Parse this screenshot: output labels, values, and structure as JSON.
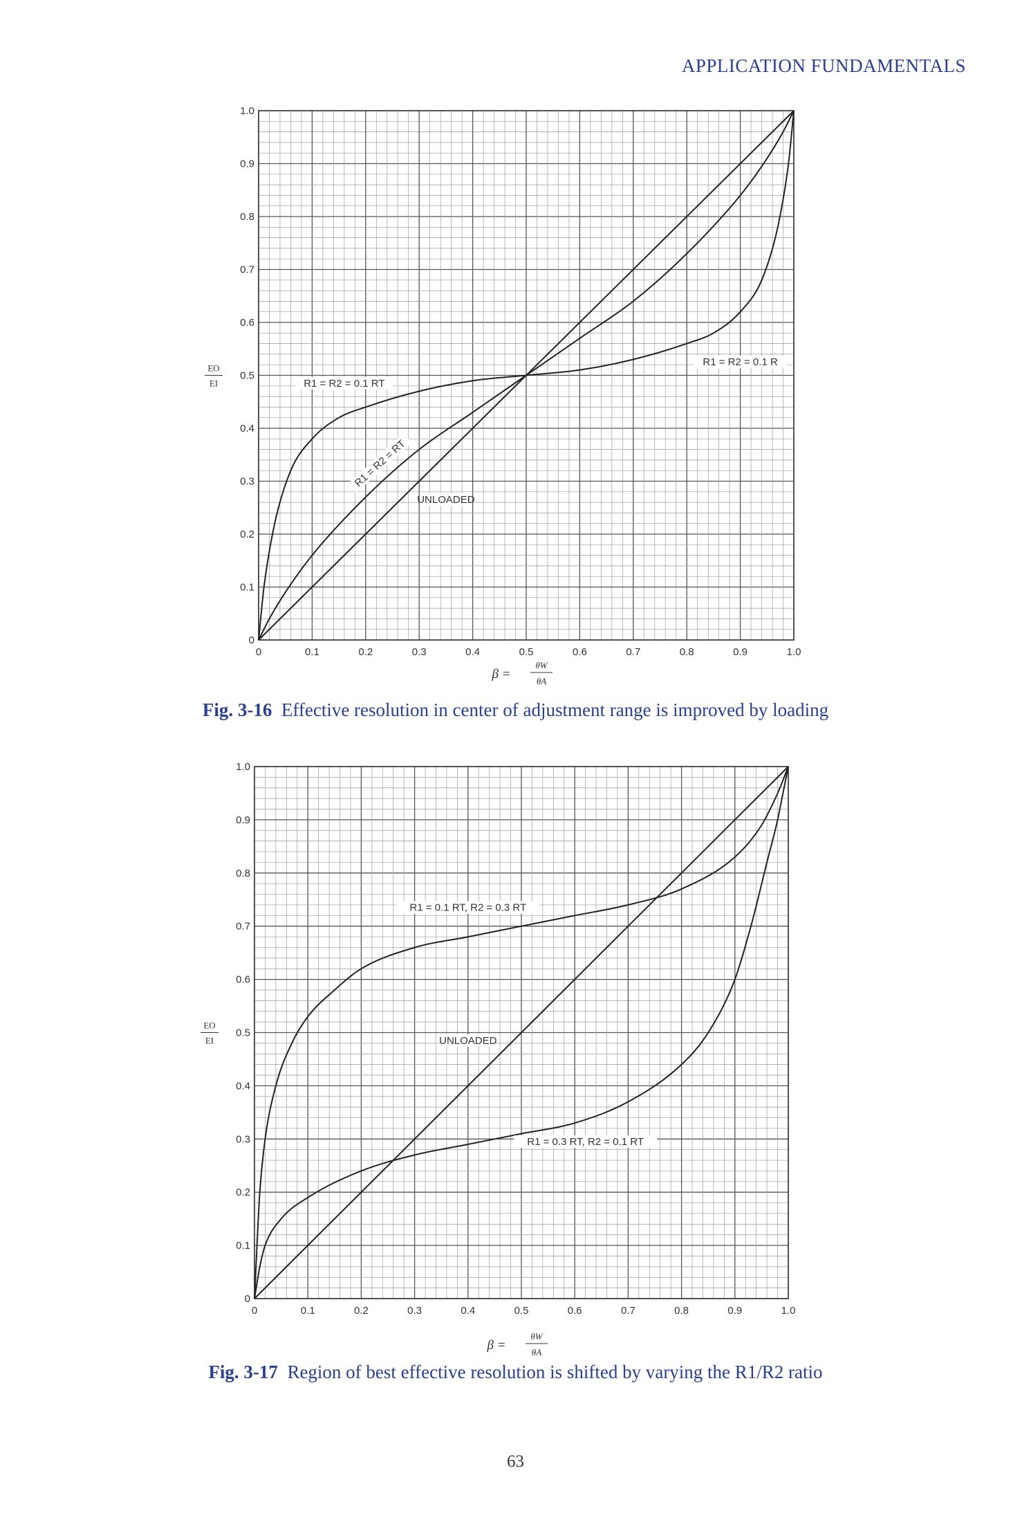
{
  "header": "APPLICATION FUNDAMENTALS",
  "page_number": "63",
  "chart_data": [
    {
      "type": "line",
      "figure_label": "Fig. 3-16",
      "caption": "Effective resolution in center of adjustment range is improved by loading",
      "xlabel": "β = θW / θA",
      "ylabel": "EO / EI",
      "xlim": [
        0,
        1.0
      ],
      "ylim": [
        0,
        1.0
      ],
      "grid": true,
      "x_ticks": [
        "0",
        "0.1",
        "0.2",
        "0.3",
        "0.4",
        "0.5",
        "0.6",
        "0.7",
        "0.8",
        "0.9",
        "1.0"
      ],
      "y_ticks": [
        "0",
        "0.1",
        "0.2",
        "0.3",
        "0.4",
        "0.5",
        "0.6",
        "0.7",
        "0.8",
        "0.9",
        "1.0"
      ],
      "series": [
        {
          "name": "UNLOADED",
          "x": [
            0,
            0.25,
            0.5,
            0.75,
            1.0
          ],
          "y": [
            0,
            0.25,
            0.5,
            0.75,
            1.0
          ]
        },
        {
          "name": "R1 = R2 = RT",
          "x": [
            0,
            0.02,
            0.05,
            0.1,
            0.2,
            0.3,
            0.4,
            0.5,
            0.6,
            0.7,
            0.8,
            0.9,
            0.95,
            0.98,
            1.0
          ],
          "y": [
            0,
            0.04,
            0.09,
            0.16,
            0.27,
            0.36,
            0.43,
            0.5,
            0.57,
            0.64,
            0.73,
            0.84,
            0.91,
            0.96,
            1.0
          ]
        },
        {
          "name": "R1 = R2 = 0.1 RT",
          "x": [
            0,
            0.01,
            0.03,
            0.06,
            0.1,
            0.15,
            0.2,
            0.3,
            0.4,
            0.5,
            0.6,
            0.7,
            0.8,
            0.85,
            0.9,
            0.94,
            0.97,
            0.99,
            1.0
          ],
          "y": [
            0,
            0.1,
            0.22,
            0.32,
            0.38,
            0.42,
            0.44,
            0.47,
            0.49,
            0.5,
            0.51,
            0.53,
            0.56,
            0.58,
            0.62,
            0.68,
            0.78,
            0.9,
            1.0
          ]
        }
      ],
      "annotations": [
        "R1 = R2 = 0.1 RT",
        "R1 = R2 = RT",
        "UNLOADED",
        "R1 = R2 = 0.1 R"
      ]
    },
    {
      "type": "line",
      "figure_label": "Fig. 3-17",
      "caption": "Region of best effective resolution is shifted by varying the R1/R2 ratio",
      "xlabel": "β = θW / θA",
      "ylabel": "EO / EI",
      "xlim": [
        0,
        1.0
      ],
      "ylim": [
        0,
        1.0
      ],
      "grid": true,
      "x_ticks": [
        "0",
        "0.1",
        "0.2",
        "0.3",
        "0.4",
        "0.5",
        "0.6",
        "0.7",
        "0.8",
        "0.9",
        "1.0"
      ],
      "y_ticks": [
        "0",
        "0.1",
        "0.2",
        "0.3",
        "0.4",
        "0.5",
        "0.6",
        "0.7",
        "0.8",
        "0.9",
        "1.0"
      ],
      "series": [
        {
          "name": "UNLOADED",
          "x": [
            0,
            0.25,
            0.5,
            0.75,
            1.0
          ],
          "y": [
            0,
            0.25,
            0.5,
            0.75,
            1.0
          ]
        },
        {
          "name": "R1 = 0.1 RT, R2 = 0.3 RT",
          "x": [
            0,
            0.01,
            0.02,
            0.04,
            0.07,
            0.1,
            0.15,
            0.2,
            0.3,
            0.4,
            0.5,
            0.6,
            0.7,
            0.8,
            0.9,
            0.95,
            0.98,
            1.0
          ],
          "y": [
            0,
            0.2,
            0.3,
            0.4,
            0.48,
            0.53,
            0.58,
            0.62,
            0.66,
            0.68,
            0.7,
            0.72,
            0.74,
            0.77,
            0.83,
            0.89,
            0.95,
            1.0
          ]
        },
        {
          "name": "R1 = 0.3 RT, R2 = 0.1 RT",
          "x": [
            0,
            0.01,
            0.02,
            0.05,
            0.1,
            0.2,
            0.3,
            0.4,
            0.5,
            0.6,
            0.7,
            0.8,
            0.85,
            0.9,
            0.93,
            0.96,
            0.98,
            0.99,
            1.0
          ],
          "y": [
            0,
            0.06,
            0.1,
            0.15,
            0.19,
            0.24,
            0.27,
            0.29,
            0.31,
            0.33,
            0.37,
            0.44,
            0.5,
            0.6,
            0.7,
            0.82,
            0.9,
            0.95,
            1.0
          ]
        }
      ],
      "annotations": [
        "R1 = 0.1 RT, R2 = 0.3 RT",
        "UNLOADED",
        "R1 = 0.3 RT, R2 = 0.1 RT"
      ]
    }
  ]
}
